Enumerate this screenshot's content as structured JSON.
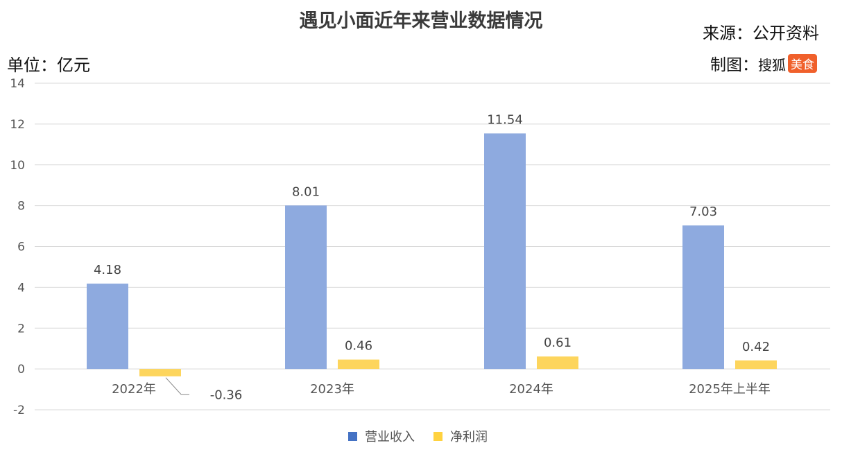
{
  "header": {
    "title": "遇见小面近年来营业数据情况",
    "unit": "单位：亿元",
    "source": "来源：公开资料",
    "credit_prefix": "制图：",
    "credit_brand": "搜狐",
    "credit_badge": "美食"
  },
  "colors": {
    "revenue": "#8eaadf",
    "profit": "#fdd55d",
    "grid": "#d9d9d9",
    "badge": "#f0602b"
  },
  "chart_data": {
    "type": "bar",
    "title": "遇见小面近年来营业数据情况",
    "ylabel": "单位：亿元",
    "categories": [
      "2022年",
      "2023年",
      "2024年",
      "2025年上半年"
    ],
    "series": [
      {
        "name": "营业收入",
        "values": [
          4.18,
          8.01,
          11.54,
          7.03
        ],
        "labels": [
          "4.18",
          "8.01",
          "11.54",
          "7.03"
        ]
      },
      {
        "name": "净利润",
        "values": [
          -0.36,
          0.46,
          0.61,
          0.42
        ],
        "labels": [
          "-0.36",
          "0.46",
          "0.61",
          "0.42"
        ]
      }
    ],
    "yticks": [
      "-2",
      "0",
      "2",
      "4",
      "6",
      "8",
      "10",
      "12",
      "14"
    ],
    "ylim": [
      -2,
      14
    ],
    "grid": true,
    "legend": "bottom"
  }
}
